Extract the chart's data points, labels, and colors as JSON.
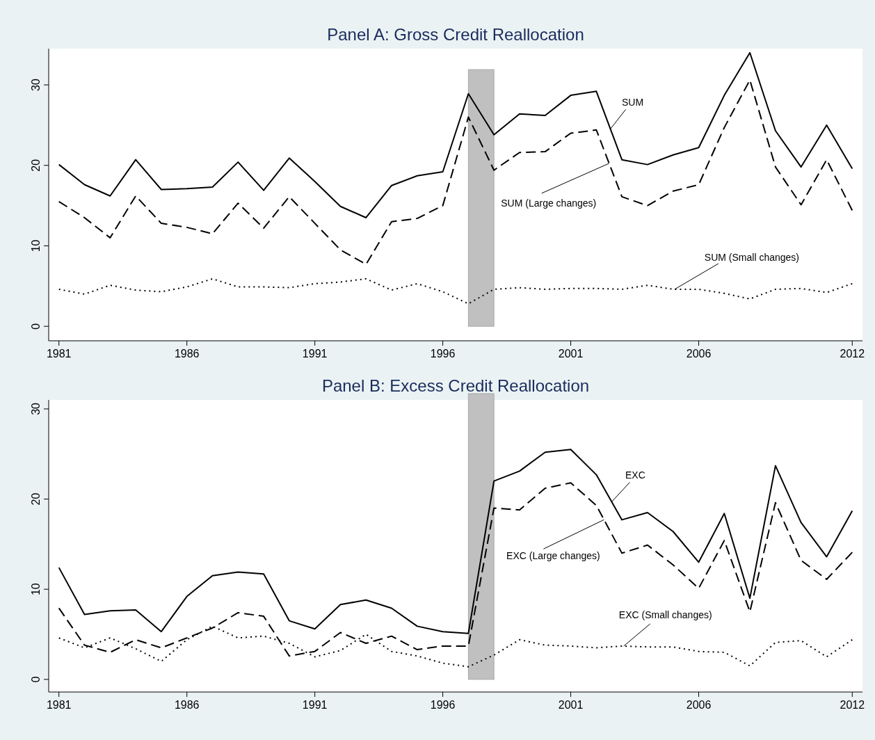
{
  "chart_data": [
    {
      "type": "line",
      "title": "Panel A: Gross Credit Reallocation",
      "x": [
        1981,
        1982,
        1983,
        1984,
        1985,
        1986,
        1987,
        1988,
        1989,
        1990,
        1991,
        1992,
        1993,
        1994,
        1995,
        1996,
        1997,
        1998,
        1999,
        2000,
        2001,
        2002,
        2003,
        2004,
        2005,
        2006,
        2007,
        2008,
        2009,
        2010,
        2011,
        2012
      ],
      "xlim": [
        1980.6,
        2012.4
      ],
      "ylim": [
        -1.8,
        34.5
      ],
      "xticks": [
        1981,
        1986,
        1991,
        1996,
        2001,
        2006,
        2012
      ],
      "yticks": [
        0,
        10,
        20,
        30
      ],
      "series": [
        {
          "name": "SUM",
          "color": "#000000",
          "line_style": "solid",
          "values": [
            20.1,
            17.6,
            16.2,
            20.7,
            17.0,
            17.1,
            17.3,
            20.4,
            16.9,
            20.9,
            18.0,
            14.9,
            13.5,
            17.5,
            18.7,
            19.2,
            28.9,
            23.8,
            26.4,
            26.2,
            28.7,
            29.2,
            20.7,
            20.1,
            21.3,
            22.2,
            28.7,
            34.0,
            24.3,
            19.8,
            25.0,
            19.6
          ]
        },
        {
          "name": "SUM (Large changes)",
          "color": "#000000",
          "line_style": "dashed",
          "values": [
            15.5,
            13.5,
            11.0,
            16.2,
            12.8,
            12.3,
            11.5,
            15.3,
            12.2,
            16.1,
            12.8,
            9.5,
            7.7,
            13.0,
            13.4,
            15.0,
            26.0,
            19.4,
            21.6,
            21.7,
            24.0,
            24.4,
            16.1,
            15.0,
            16.8,
            17.6,
            24.7,
            30.6,
            19.8,
            15.1,
            20.7,
            14.4
          ]
        },
        {
          "name": "SUM (Small changes)",
          "color": "#000000",
          "line_style": "dotted",
          "values": [
            4.6,
            4.0,
            5.1,
            4.5,
            4.3,
            4.9,
            5.9,
            4.9,
            4.9,
            4.8,
            5.3,
            5.5,
            5.9,
            4.5,
            5.3,
            4.3,
            2.8,
            4.6,
            4.8,
            4.6,
            4.7,
            4.7,
            4.6,
            5.1,
            4.6,
            4.6,
            4.1,
            3.4,
            4.6,
            4.7,
            4.2,
            5.3
          ]
        }
      ],
      "bands": [
        {
          "axis": "x",
          "from": 1997,
          "to": 1998,
          "color": "#c0c0c0"
        }
      ]
    },
    {
      "type": "line",
      "title": "Panel B: Excess Credit Reallocation",
      "x": [
        1981,
        1982,
        1983,
        1984,
        1985,
        1986,
        1987,
        1988,
        1989,
        1990,
        1991,
        1992,
        1993,
        1994,
        1995,
        1996,
        1997,
        1998,
        1999,
        2000,
        2001,
        2002,
        2003,
        2004,
        2005,
        2006,
        2007,
        2008,
        2009,
        2010,
        2011,
        2012
      ],
      "xlim": [
        1980.6,
        2012.4
      ],
      "ylim": [
        -1.4,
        31
      ],
      "xticks": [
        1981,
        1986,
        1991,
        1996,
        2001,
        2006,
        2012
      ],
      "yticks": [
        0,
        10,
        20,
        30
      ],
      "series": [
        {
          "name": "EXC",
          "color": "#000000",
          "line_style": "solid",
          "values": [
            12.4,
            7.2,
            7.6,
            7.7,
            5.3,
            9.2,
            11.5,
            11.9,
            11.7,
            6.5,
            5.6,
            8.3,
            8.8,
            7.9,
            5.9,
            5.3,
            5.1,
            22.0,
            23.1,
            25.2,
            25.5,
            22.7,
            17.7,
            18.5,
            16.4,
            13.0,
            18.4,
            9.0,
            23.7,
            17.4,
            13.6,
            18.7
          ]
        },
        {
          "name": "EXC (Large changes)",
          "color": "#000000",
          "line_style": "dashed",
          "values": [
            7.9,
            3.8,
            3.0,
            4.4,
            3.5,
            4.6,
            5.7,
            7.4,
            7.0,
            2.6,
            3.1,
            5.2,
            4.0,
            4.8,
            3.3,
            3.7,
            3.7,
            19.0,
            18.8,
            21.2,
            21.8,
            19.3,
            14.0,
            14.9,
            12.7,
            10.1,
            15.4,
            7.5,
            19.6,
            13.2,
            11.1,
            14.1
          ]
        },
        {
          "name": "EXC (Small changes)",
          "color": "#000000",
          "line_style": "dotted",
          "values": [
            4.6,
            3.5,
            4.6,
            3.4,
            2.0,
            4.4,
            5.9,
            4.6,
            4.8,
            4.0,
            2.5,
            3.2,
            5.0,
            3.1,
            2.6,
            1.8,
            1.4,
            2.7,
            4.4,
            3.8,
            3.7,
            3.5,
            3.7,
            3.6,
            3.6,
            3.1,
            3.0,
            1.5,
            4.1,
            4.3,
            2.5,
            4.4
          ]
        }
      ],
      "bands": [
        {
          "axis": "x",
          "from": 1997,
          "to": 1998,
          "color": "#c0c0c0"
        }
      ]
    }
  ]
}
